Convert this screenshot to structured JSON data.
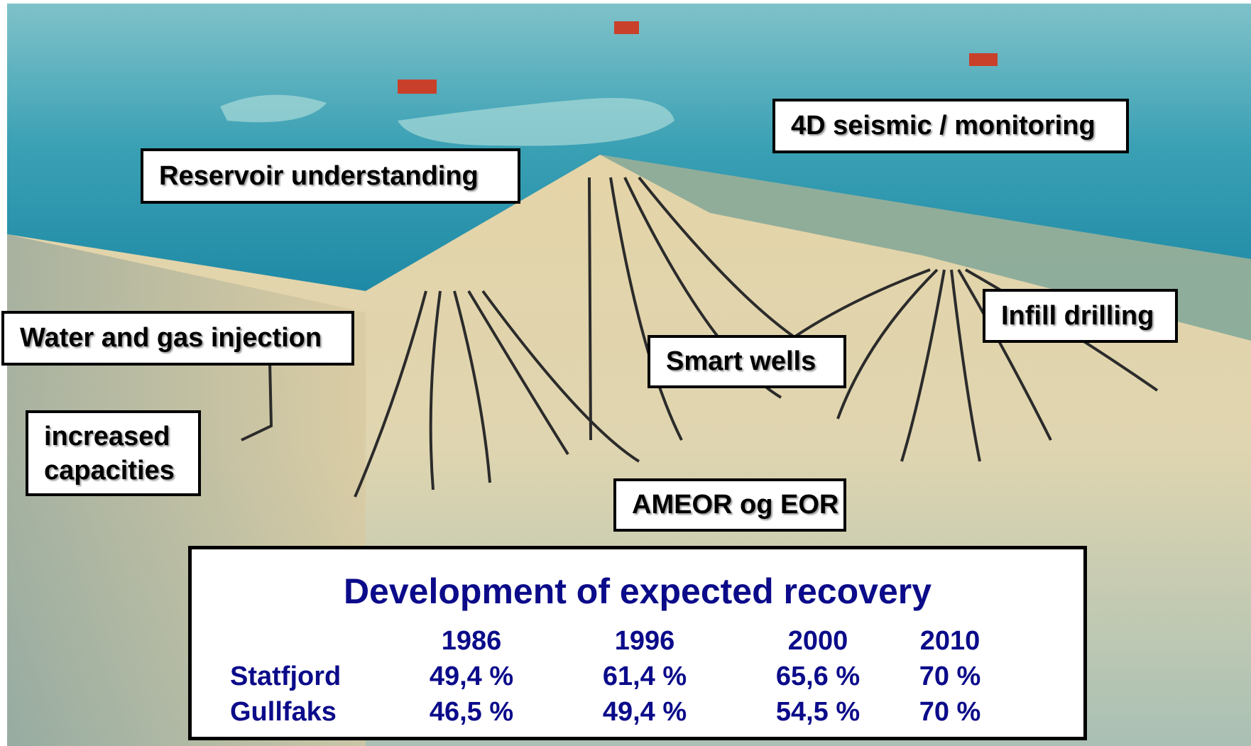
{
  "labels": [
    "Reservoir understanding",
    "4D seismic / monitoring",
    "Water and gas injection",
    "Infill drilling",
    "Smart wells",
    [
      "increased",
      "capacities"
    ],
    "AMEOR og EOR"
  ],
  "table": {
    "title": "Development of expected recovery",
    "header": [
      "1986",
      "1996",
      "2000",
      "2010"
    ],
    "rows": [
      [
        "Statfjord",
        "49,4 %",
        "61,4 %",
        "65,6 %",
        "70 %"
      ],
      [
        "Gullfaks",
        "46,5 %",
        "49,4 %",
        "54,5 %",
        "70 %"
      ]
    ]
  }
}
